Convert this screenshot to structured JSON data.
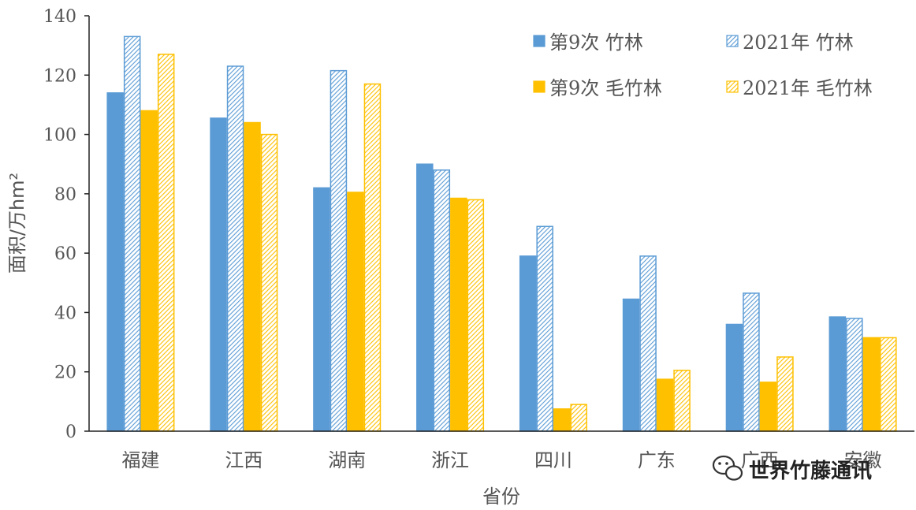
{
  "chart_data": {
    "type": "bar",
    "xlabel": "省份",
    "ylabel": "面积/万hm²",
    "ylim": [
      0,
      140
    ],
    "yticks": [
      0,
      20,
      40,
      60,
      80,
      100,
      120,
      140
    ],
    "grid": false,
    "legend_position": "top-right",
    "categories": [
      "福建",
      "江西",
      "湖南",
      "浙江",
      "四川",
      "广东",
      "广西",
      "安徽"
    ],
    "series": [
      {
        "name": "第9次 竹林",
        "color": "#5b9bd5",
        "pattern": "solid",
        "values": [
          114,
          105.5,
          82,
          90,
          59,
          44.5,
          36,
          38.5
        ]
      },
      {
        "name": "2021年 竹林",
        "color": "#5b9bd5",
        "pattern": "hatched",
        "values": [
          133,
          123,
          121.5,
          88,
          69,
          59,
          46.5,
          38
        ]
      },
      {
        "name": "第9次 毛竹林",
        "color": "#ffc000",
        "pattern": "solid",
        "values": [
          108,
          104,
          80.5,
          78.5,
          7.5,
          17.5,
          16.5,
          31.5
        ]
      },
      {
        "name": "2021年 毛竹林",
        "color": "#ffc000",
        "pattern": "hatched",
        "values": [
          127,
          100,
          117,
          78,
          9,
          20.5,
          25,
          31.5
        ]
      }
    ]
  },
  "watermark": {
    "text": "世界竹藤通讯",
    "icon": "wechat-icon"
  }
}
